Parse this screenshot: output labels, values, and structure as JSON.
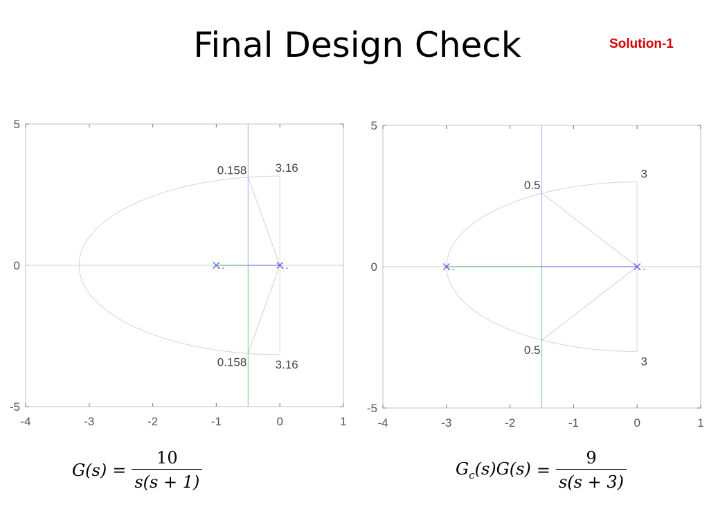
{
  "slide": {
    "title": "Final Design Check",
    "tag": "Solution-1",
    "tag_color": "#d40000"
  },
  "chart_data": [
    {
      "type": "scatter",
      "title": "",
      "xlim": [
        -4,
        1
      ],
      "ylim": [
        -5,
        5
      ],
      "x_ticks": [
        -4,
        -3,
        -2,
        -1,
        0,
        1
      ],
      "y_ticks": [
        -5,
        0,
        5
      ],
      "grid": "sgrid",
      "open_loop_poles": [
        [
          0,
          0
        ],
        [
          -1,
          0
        ]
      ],
      "root_locus": {
        "real_segment": [
          -1,
          0
        ],
        "breakaway": -0.5,
        "asymptote_x": -0.5
      },
      "damping_ratio_line": 0.158,
      "natural_frequency_arc": 3.16,
      "annotations": [
        {
          "text": "0.158",
          "x": -0.5,
          "y": 3.08
        },
        {
          "text": "3.16",
          "x": 0.0,
          "y": 3.16
        },
        {
          "text": "0.158",
          "x": -0.5,
          "y": -3.08
        },
        {
          "text": "3.16",
          "x": 0.0,
          "y": -3.16
        }
      ],
      "formula": {
        "lhs": "G(s)",
        "num": "10",
        "den": "s(s + 1)"
      }
    },
    {
      "type": "scatter",
      "title": "",
      "xlim": [
        -4,
        1
      ],
      "ylim": [
        -5,
        5
      ],
      "x_ticks": [
        -4,
        -3,
        -2,
        -1,
        0,
        1
      ],
      "y_ticks": [
        -5,
        0,
        5
      ],
      "grid": "sgrid",
      "open_loop_poles": [
        [
          0,
          0
        ],
        [
          -3,
          0
        ]
      ],
      "root_locus": {
        "real_segment": [
          -3,
          0
        ],
        "breakaway": -1.5,
        "asymptote_x": -1.5
      },
      "damping_ratio_line": 0.5,
      "natural_frequency_arc": 3,
      "annotations": [
        {
          "text": "0.5",
          "x": -1.5,
          "y": 2.6
        },
        {
          "text": "3",
          "x": 0.0,
          "y": 3.0
        },
        {
          "text": "0.5",
          "x": -1.5,
          "y": -2.6
        },
        {
          "text": "3",
          "x": 0.0,
          "y": -3.0
        }
      ],
      "formula": {
        "lhs_main": "G",
        "lhs_sub": "c",
        "lhs_rest": "(s)G(s)",
        "num": "9",
        "den": "s(s + 3)"
      }
    }
  ]
}
